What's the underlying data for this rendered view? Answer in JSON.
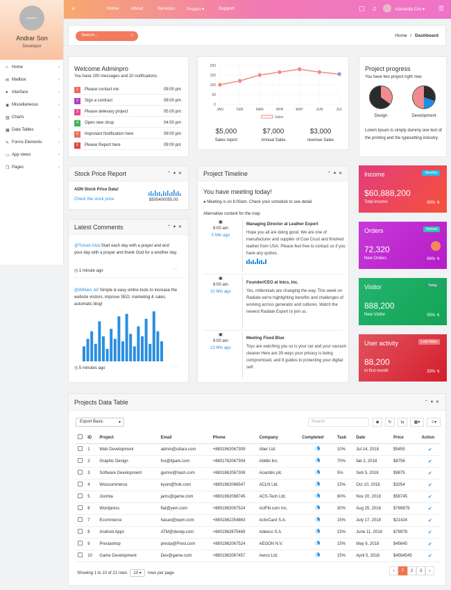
{
  "sidebar": {
    "avatar_text": "ynsyyrm",
    "name": "Andrar Son",
    "role": "Developer",
    "items": [
      {
        "label": "Home",
        "icon": "home-icon"
      },
      {
        "label": "Mailbox",
        "icon": "envelope-icon"
      },
      {
        "label": "Interface",
        "icon": "user-icon"
      },
      {
        "label": "Miscellaneous",
        "icon": "globe-icon"
      },
      {
        "label": "Charts",
        "icon": "chart-icon"
      },
      {
        "label": "Data Tables",
        "icon": "table-icon"
      },
      {
        "label": "Forms Elements",
        "icon": "edit-icon"
      },
      {
        "label": "App views",
        "icon": "desktop-icon"
      },
      {
        "label": "Pages",
        "icon": "files-icon"
      }
    ]
  },
  "topbar": {
    "nav": [
      "Home",
      "About",
      "Services",
      "Project",
      "Support"
    ],
    "user": "Advanda Cro"
  },
  "search": {
    "placeholder": "Search..."
  },
  "breadcrumb": {
    "home": "Home",
    "separator": "/",
    "current": "Dashboard"
  },
  "welcome": {
    "title": "Welcome Adminpro",
    "subtitle": "You have 100 messages and 10 notifications.",
    "items": [
      {
        "num": "1",
        "text": "Please contact me",
        "time": "09:00 pm",
        "color": "#ea6b5a"
      },
      {
        "num": "2",
        "text": "Sign a contract",
        "time": "09:00 pm",
        "color": "#b93cc9"
      },
      {
        "num": "3",
        "text": "Please delevary project",
        "time": "05:00 pm",
        "color": "#e84a8a"
      },
      {
        "num": "4",
        "text": "Open new shop",
        "time": "04:00 pm",
        "color": "#3fb553"
      },
      {
        "num": "5",
        "text": "Improtant Notification here",
        "time": "09:00 pm",
        "color": "#ea6b5a"
      },
      {
        "num": "6",
        "text": "Please Report here",
        "time": "09:00 pm",
        "color": "#e04545"
      }
    ]
  },
  "chart_data": {
    "type": "line",
    "categories": [
      "JAN",
      "FEB",
      "MAR",
      "APR",
      "MAY",
      "JUN",
      "JUL"
    ],
    "series": [
      {
        "name": "Sales",
        "values": [
          100,
          120,
          150,
          165,
          180,
          165,
          155
        ]
      }
    ],
    "yticks": [
      "200",
      "150",
      "100",
      "50",
      "0"
    ],
    "ylim": [
      0,
      200
    ],
    "legend": "Sales",
    "colors": {
      "line": "#f08a80",
      "point_start": "#f08a80",
      "point_end": "#8e9bd8"
    }
  },
  "sales_stats": [
    {
      "value": "$5,000",
      "label": "Sales report"
    },
    {
      "value": "$7,000",
      "label": "Annual Sales"
    },
    {
      "value": "$3,000",
      "label": "revenue Sales"
    }
  ],
  "project_progress": {
    "title": "Project progress",
    "subtitle": "You have two project right now.",
    "pies": [
      {
        "label": "Design",
        "share": 0.35
      },
      {
        "label": "Development",
        "share": 0.3
      }
    ],
    "text": "Lorem Ipsum is simply dummy one text of the printing and the typesetting industry."
  },
  "stock": {
    "title": "Stock Price Report",
    "heading": "ADN Stock Price Data!",
    "link": "Check the stock price",
    "value": "$505400055.00"
  },
  "comments": {
    "title": "Latest Comments",
    "items": [
      {
        "user": "@Toman Alva",
        "text": " Start each day with a prayer and end your day with a prayer and thank God for a another day.",
        "time": "1 minute ago"
      },
      {
        "user": "@William Jef",
        "text": " Simple & easy online tools to increase the website visitors, improve SEO, marketing & sales, automatic blog!",
        "time": "5 minutes ago"
      }
    ],
    "bars": [
      0.3,
      0.45,
      0.6,
      0.35,
      0.8,
      0.5,
      0.25,
      0.65,
      0.45,
      0.9,
      0.4,
      0.95,
      0.55,
      0.3,
      0.7,
      0.5,
      0.85,
      0.35,
      1.0,
      0.6,
      0.4
    ]
  },
  "timeline": {
    "title": "Project Timeline",
    "heading": "You have meeting today!",
    "meeting": "Meeting is on 6:00am. Check your schedule to see detail.",
    "alt": "Alternative content for the map",
    "items": [
      {
        "time": "6:00 am",
        "ago": "5 Min ago",
        "title": "Managing Director at Leather Export",
        "text": "Hope you all are doing good. We are one of manufacturer and supplier of Cow Crust and finished leather from USA. Please feel free to contact us if you have any quiries."
      },
      {
        "time": "6:00 am",
        "ago": "10 Min ago",
        "title": "Founder/CEO at Intcs, Inc.",
        "text": "Yes, millennials are changing the way. This week on Radiate we're highlighting benefits and challenges of working across generator and cultures. Watch the newest Radiate Expert to join us."
      },
      {
        "time": "6:00 am",
        "ago": "13 Min ago",
        "title": "Meeting Fixed Blue",
        "text": "Toys are watching you so is your car and your vacuum cleaner Here are 39 ways your privacy is being compromised, and 8 guides to protecting your digital self."
      }
    ]
  },
  "stats": [
    {
      "title": "Income",
      "badge": "Monthly",
      "value": "$60,888,200",
      "sub": "Total income",
      "pct": "98%",
      "bg": "linear-gradient(135deg,#e23d7b,#f5513b)",
      "badge_bg": "#2db6e8"
    },
    {
      "title": "Orders",
      "badge": "Annual",
      "value": "72,320",
      "sub": "New Orders",
      "pct": "66%",
      "bg": "linear-gradient(135deg,#c73ad8,#b51cc7)",
      "badge_bg": "#2bc4b6"
    },
    {
      "title": "Visitor",
      "badge": "Today",
      "value": "888,200",
      "sub": "New Visitor",
      "pct": "55%",
      "bg": "linear-gradient(135deg,#23b36e,#13a455)",
      "badge_bg": "#2a9d6c"
    },
    {
      "title": "User activity",
      "badge": "Low Value",
      "value": "88,200",
      "sub": "In first month",
      "pct": "33%",
      "bg": "linear-gradient(135deg,#e2525f,#d41e2c)",
      "badge_bg": "#f07a81"
    }
  ],
  "table": {
    "title": "Projects Data Table",
    "export": "Export Basic",
    "search_placeholder": "Search",
    "columns": [
      "ID",
      "Project",
      "Email",
      "Phone",
      "Company",
      "Completed",
      "Task",
      "Date",
      "Price",
      "Action"
    ],
    "rows": [
      [
        "1",
        "Web Development",
        "admin@uttara.com",
        "+8801962067309",
        "Aber Ltd.",
        "10%",
        "Jul 14, 2018",
        "$5455"
      ],
      [
        "2",
        "Graphic Design",
        "fox@itpark.com",
        "+8801762067304",
        "Abitibi Inc.",
        "70%",
        "fab 2, 2018",
        "$8756"
      ],
      [
        "3",
        "Software Development",
        "gumre@hash.com",
        "+8801862067308",
        "Acambis plc",
        "5%",
        "Seb 5, 2018",
        "$9875"
      ],
      [
        "4",
        "Woocommerce",
        "kyum@frok.com",
        "+8801962066547",
        "ACLN Ltd.",
        "15%",
        "Oct 10, 2018",
        "$3254"
      ],
      [
        "5",
        "Joomla",
        "jams@game.com",
        "+8801962098745",
        "ACS-Tech Ltd.",
        "80%",
        "Nov 20, 2018",
        "$58745"
      ],
      [
        "6",
        "Wordpress",
        "flat@yem.com",
        "+8801962067524",
        "ActFilt.com Inc.",
        "30%",
        "Aug 25, 2018",
        "$789879"
      ],
      [
        "7",
        "Ecommerce",
        "hasan@wpm.com",
        "+8801962254863",
        "ActivCard S.A.",
        "15%",
        "July 17, 2018",
        "$21424"
      ],
      [
        "8",
        "Android Apps",
        "ATM@devep.com",
        "+8801962875469",
        "Adeeco S.A.",
        "15%",
        "June 11, 2018",
        "$78978"
      ],
      [
        "9",
        "Prestashop",
        "presta@Prest.com",
        "+8801962067524",
        "AEGON N.V.",
        "15%",
        "May 9, 2018",
        "$45645"
      ],
      [
        "10",
        "Game Development",
        "Dev@game.com",
        "+8801962067457",
        "Aerco Ltd.",
        "15%",
        "April 5, 2018",
        "$4564545"
      ]
    ],
    "footer_prefix": "Showing 1 to 10 of 21 rows",
    "page_size": "10",
    "footer_suffix": "rows per page",
    "pages": [
      "‹",
      "1",
      "2",
      "3",
      "›"
    ]
  }
}
